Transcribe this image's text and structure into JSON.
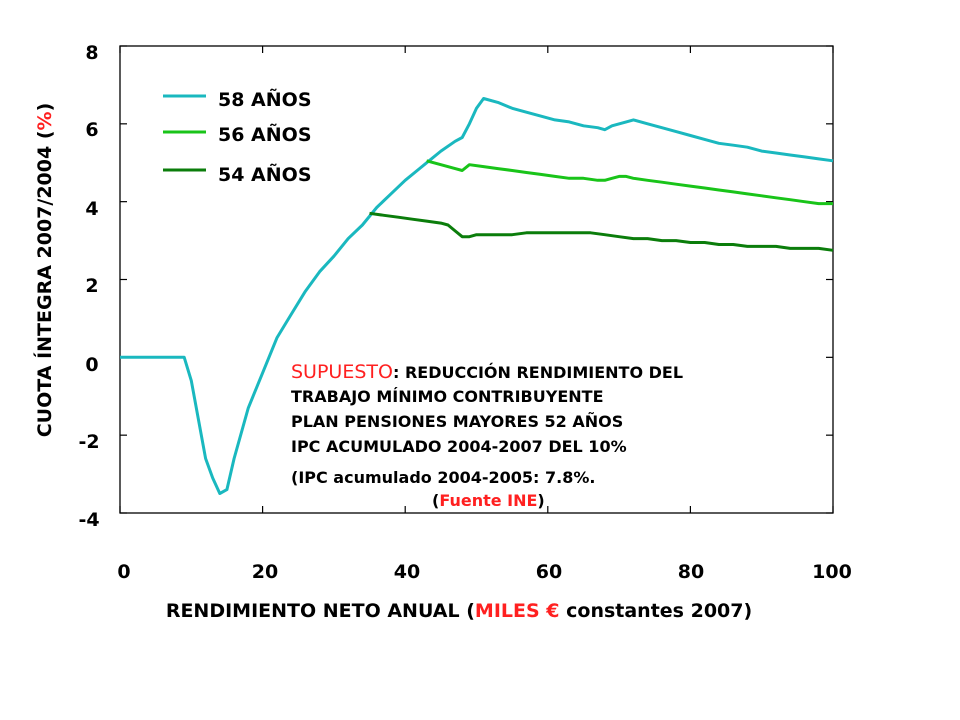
{
  "chart_data": {
    "type": "line",
    "xlabel": {
      "prefix": "RENDIMIENTO NETO ANUAL (",
      "highlight": "MILES €",
      "suffix": " constantes 2007)"
    },
    "ylabel": {
      "prefix": "CUOTA ÍNTEGRA 2007/2004 (",
      "highlight": "%",
      "suffix": ")"
    },
    "xlim": [
      0,
      100
    ],
    "ylim": [
      -4,
      8
    ],
    "xticks": [
      "0",
      "20",
      "40",
      "60",
      "80",
      "100"
    ],
    "yticks": [
      "8",
      "6",
      "4",
      "2",
      "0",
      "-2",
      "-4"
    ],
    "grid": false,
    "legend_position": "top-left",
    "series": [
      {
        "name": "58 AÑOS",
        "color": "#1ab8bf",
        "points": [
          [
            0,
            0
          ],
          [
            9,
            0
          ],
          [
            10,
            -0.6
          ],
          [
            12,
            -2.6
          ],
          [
            13,
            -3.1
          ],
          [
            14,
            -3.5
          ],
          [
            15,
            -3.4
          ],
          [
            16,
            -2.6
          ],
          [
            18,
            -1.3
          ],
          [
            20,
            -0.4
          ],
          [
            22,
            0.5
          ],
          [
            24,
            1.1
          ],
          [
            26,
            1.7
          ],
          [
            28,
            2.2
          ],
          [
            30,
            2.6
          ],
          [
            32,
            3.05
          ],
          [
            34,
            3.4
          ],
          [
            36,
            3.85
          ],
          [
            38,
            4.2
          ],
          [
            40,
            4.55
          ],
          [
            42,
            4.85
          ],
          [
            43,
            5.0
          ],
          [
            45,
            5.3
          ],
          [
            47,
            5.55
          ],
          [
            48,
            5.65
          ],
          [
            49,
            6.0
          ],
          [
            50,
            6.4
          ],
          [
            51,
            6.65
          ],
          [
            53,
            6.55
          ],
          [
            55,
            6.4
          ],
          [
            57,
            6.3
          ],
          [
            59,
            6.2
          ],
          [
            61,
            6.1
          ],
          [
            63,
            6.05
          ],
          [
            65,
            5.95
          ],
          [
            67,
            5.9
          ],
          [
            68,
            5.85
          ],
          [
            69,
            5.95
          ],
          [
            71,
            6.05
          ],
          [
            72,
            6.1
          ],
          [
            74,
            6.0
          ],
          [
            76,
            5.9
          ],
          [
            78,
            5.8
          ],
          [
            80,
            5.7
          ],
          [
            82,
            5.6
          ],
          [
            84,
            5.5
          ],
          [
            86,
            5.45
          ],
          [
            88,
            5.4
          ],
          [
            90,
            5.3
          ],
          [
            92,
            5.25
          ],
          [
            94,
            5.2
          ],
          [
            96,
            5.15
          ],
          [
            98,
            5.1
          ],
          [
            100,
            5.05
          ]
        ]
      },
      {
        "name": "56 AÑOS",
        "color": "#19c419",
        "points": [
          [
            43,
            5.05
          ],
          [
            45,
            4.95
          ],
          [
            47,
            4.85
          ],
          [
            48,
            4.8
          ],
          [
            49,
            4.95
          ],
          [
            51,
            4.9
          ],
          [
            53,
            4.85
          ],
          [
            55,
            4.8
          ],
          [
            57,
            4.75
          ],
          [
            59,
            4.7
          ],
          [
            61,
            4.65
          ],
          [
            63,
            4.6
          ],
          [
            65,
            4.6
          ],
          [
            67,
            4.55
          ],
          [
            68,
            4.55
          ],
          [
            69,
            4.6
          ],
          [
            70,
            4.65
          ],
          [
            71,
            4.65
          ],
          [
            72,
            4.6
          ],
          [
            74,
            4.55
          ],
          [
            76,
            4.5
          ],
          [
            78,
            4.45
          ],
          [
            80,
            4.4
          ],
          [
            82,
            4.35
          ],
          [
            84,
            4.3
          ],
          [
            86,
            4.25
          ],
          [
            88,
            4.2
          ],
          [
            90,
            4.15
          ],
          [
            92,
            4.1
          ],
          [
            94,
            4.05
          ],
          [
            96,
            4.0
          ],
          [
            98,
            3.95
          ],
          [
            100,
            3.95
          ]
        ]
      },
      {
        "name": "54 AÑOS",
        "color": "#0b7d0b",
        "points": [
          [
            35,
            3.7
          ],
          [
            37,
            3.65
          ],
          [
            39,
            3.6
          ],
          [
            41,
            3.55
          ],
          [
            43,
            3.5
          ],
          [
            45,
            3.45
          ],
          [
            46,
            3.4
          ],
          [
            47,
            3.25
          ],
          [
            48,
            3.1
          ],
          [
            49,
            3.1
          ],
          [
            50,
            3.15
          ],
          [
            52,
            3.15
          ],
          [
            55,
            3.15
          ],
          [
            57,
            3.2
          ],
          [
            60,
            3.2
          ],
          [
            62,
            3.2
          ],
          [
            64,
            3.2
          ],
          [
            66,
            3.2
          ],
          [
            68,
            3.15
          ],
          [
            70,
            3.1
          ],
          [
            72,
            3.05
          ],
          [
            74,
            3.05
          ],
          [
            76,
            3.0
          ],
          [
            78,
            3.0
          ],
          [
            80,
            2.95
          ],
          [
            82,
            2.95
          ],
          [
            84,
            2.9
          ],
          [
            86,
            2.9
          ],
          [
            88,
            2.85
          ],
          [
            90,
            2.85
          ],
          [
            92,
            2.85
          ],
          [
            94,
            2.8
          ],
          [
            96,
            2.8
          ],
          [
            98,
            2.8
          ],
          [
            100,
            2.75
          ]
        ]
      }
    ],
    "annotation": {
      "head_highlight": "SUPUESTO",
      "head_rest": ": REDUCCIÓN RENDIMIENTO DEL",
      "lines": [
        "TRABAJO MÍNIMO CONTRIBUYENTE",
        "PLAN PENSIONES MAYORES 52 AÑOS",
        "IPC ACUMULADO 2004-2007 DEL 10%",
        "(IPC acumulado 2004-2005: 7.8%."
      ],
      "source_prefix": "(",
      "source_highlight": "Fuente INE",
      "source_suffix": ")"
    },
    "highlight_color": "#ff2020"
  }
}
